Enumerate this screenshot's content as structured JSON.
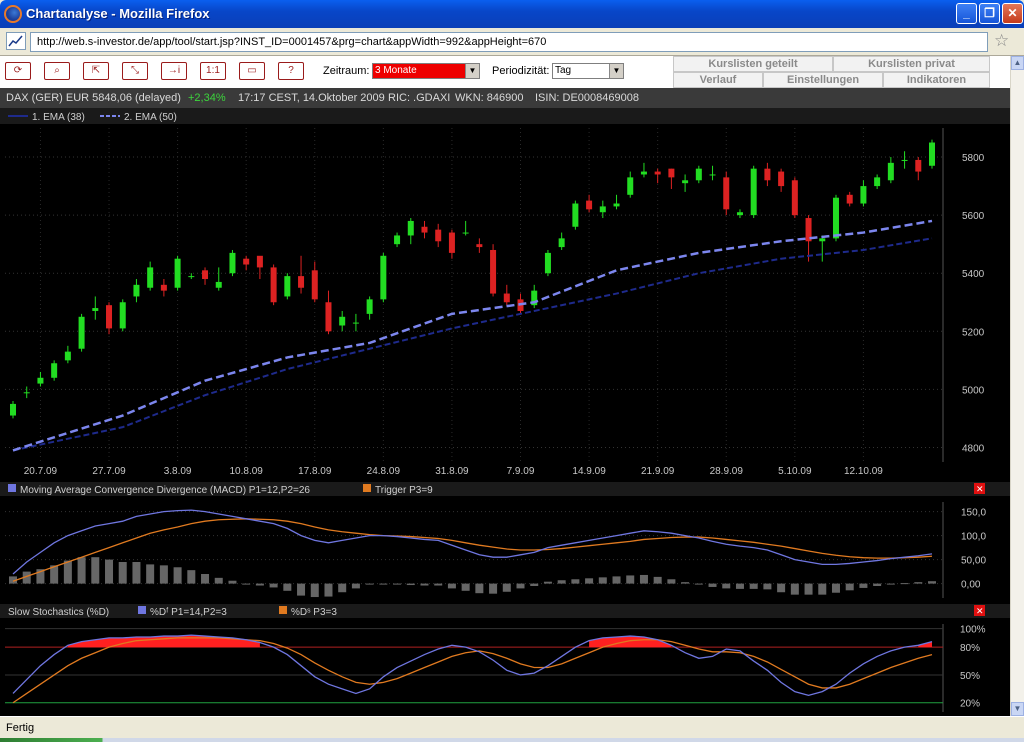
{
  "window": {
    "title": "Chartanalyse - Mozilla Firefox"
  },
  "browser": {
    "url": "http://web.s-investor.de/app/tool/start.jsp?INST_ID=0001457&prg=chart&appWidth=992&appHeight=670",
    "status": "Fertig"
  },
  "toolbar": {
    "buttons": [
      "⟳",
      "⌕",
      "⇱",
      "⤡",
      "→i",
      "1:1",
      "▭",
      "?"
    ],
    "zeitraum_label": "Zeitraum:",
    "zeitraum_value": "3 Monate",
    "period_label": "Periodizität:",
    "period_value": "Tag",
    "tabs": [
      "Kurslisten geteilt",
      "Kurslisten privat",
      "Verlauf",
      "Einstellungen",
      "Indikatoren"
    ]
  },
  "info": {
    "instrument": "DAX (GER) EUR 5848,06 (delayed)",
    "change": "+2,34%",
    "time": "17:17 CEST, 14.Oktober 2009",
    "ric": "RIC: .GDAXI",
    "wkn": "WKN: 846900",
    "isin": "ISIN: DE0008469008"
  },
  "colors": {
    "up": "#22DD22",
    "down": "#DD2222",
    "ema1": "#1E2A8C",
    "ema2": "#7C86EE",
    "macd": "#6F76E0",
    "trigger": "#E07A20",
    "stoch_fill": "#FF2020"
  },
  "chart_data": [
    {
      "type": "candlestick",
      "title": "",
      "legend": [
        "1. EMA (38)",
        "2. EMA (50)"
      ],
      "ylim": [
        4750,
        5900
      ],
      "yticks": [
        4800,
        5000,
        5200,
        5400,
        5600,
        5800
      ],
      "xticks": [
        {
          "label": "20.7.09",
          "index": 2
        },
        {
          "label": "27.7.09",
          "index": 7
        },
        {
          "label": "3.8.09",
          "index": 12
        },
        {
          "label": "10.8.09",
          "index": 17
        },
        {
          "label": "17.8.09",
          "index": 22
        },
        {
          "label": "24.8.09",
          "index": 27
        },
        {
          "label": "31.8.09",
          "index": 32
        },
        {
          "label": "7.9.09",
          "index": 37
        },
        {
          "label": "14.9.09",
          "index": 42
        },
        {
          "label": "21.9.09",
          "index": 47
        },
        {
          "label": "28.9.09",
          "index": 52
        },
        {
          "label": "5.10.09",
          "index": 57
        },
        {
          "label": "12.10.09",
          "index": 62
        }
      ],
      "candles": [
        [
          4910,
          4950,
          4900,
          4960
        ],
        [
          4990,
          4990,
          4970,
          5010
        ],
        [
          5020,
          5040,
          5010,
          5060
        ],
        [
          5040,
          5090,
          5030,
          5100
        ],
        [
          5100,
          5130,
          5090,
          5150
        ],
        [
          5140,
          5250,
          5130,
          5260
        ],
        [
          5270,
          5280,
          5240,
          5320
        ],
        [
          5290,
          5210,
          5190,
          5300
        ],
        [
          5210,
          5300,
          5200,
          5310
        ],
        [
          5320,
          5360,
          5300,
          5380
        ],
        [
          5350,
          5420,
          5340,
          5440
        ],
        [
          5360,
          5340,
          5320,
          5380
        ],
        [
          5350,
          5450,
          5340,
          5460
        ],
        [
          5390,
          5390,
          5380,
          5400
        ],
        [
          5410,
          5380,
          5360,
          5420
        ],
        [
          5350,
          5370,
          5340,
          5420
        ],
        [
          5400,
          5470,
          5390,
          5480
        ],
        [
          5450,
          5430,
          5410,
          5460
        ],
        [
          5460,
          5420,
          5380,
          5450
        ],
        [
          5420,
          5300,
          5290,
          5430
        ],
        [
          5320,
          5390,
          5310,
          5400
        ],
        [
          5390,
          5350,
          5330,
          5460
        ],
        [
          5410,
          5310,
          5300,
          5440
        ],
        [
          5300,
          5200,
          5190,
          5340
        ],
        [
          5220,
          5250,
          5200,
          5270
        ],
        [
          5230,
          5230,
          5200,
          5260
        ],
        [
          5260,
          5310,
          5240,
          5320
        ],
        [
          5310,
          5460,
          5300,
          5470
        ],
        [
          5500,
          5530,
          5490,
          5540
        ],
        [
          5530,
          5580,
          5500,
          5590
        ],
        [
          5560,
          5540,
          5520,
          5580
        ],
        [
          5550,
          5510,
          5490,
          5570
        ],
        [
          5540,
          5470,
          5450,
          5550
        ],
        [
          5540,
          5540,
          5530,
          5580
        ],
        [
          5500,
          5490,
          5470,
          5520
        ],
        [
          5480,
          5330,
          5320,
          5500
        ],
        [
          5330,
          5300,
          5290,
          5360
        ],
        [
          5310,
          5270,
          5260,
          5330
        ],
        [
          5290,
          5340,
          5280,
          5360
        ],
        [
          5400,
          5470,
          5390,
          5480
        ],
        [
          5490,
          5520,
          5480,
          5540
        ],
        [
          5560,
          5640,
          5550,
          5650
        ],
        [
          5650,
          5620,
          5610,
          5670
        ],
        [
          5610,
          5630,
          5590,
          5650
        ],
        [
          5630,
          5640,
          5620,
          5670
        ],
        [
          5670,
          5730,
          5660,
          5750
        ],
        [
          5740,
          5750,
          5730,
          5780
        ],
        [
          5750,
          5740,
          5710,
          5760
        ],
        [
          5760,
          5730,
          5690,
          5760
        ],
        [
          5710,
          5720,
          5680,
          5740
        ],
        [
          5720,
          5760,
          5710,
          5770
        ],
        [
          5740,
          5740,
          5720,
          5770
        ],
        [
          5730,
          5620,
          5600,
          5750
        ],
        [
          5600,
          5610,
          5590,
          5620
        ],
        [
          5600,
          5760,
          5590,
          5770
        ],
        [
          5760,
          5720,
          5700,
          5780
        ],
        [
          5750,
          5700,
          5680,
          5760
        ],
        [
          5720,
          5600,
          5590,
          5730
        ],
        [
          5590,
          5510,
          5440,
          5600
        ],
        [
          5510,
          5520,
          5440,
          5530
        ],
        [
          5520,
          5660,
          5510,
          5670
        ],
        [
          5670,
          5640,
          5630,
          5680
        ],
        [
          5640,
          5700,
          5630,
          5720
        ],
        [
          5700,
          5730,
          5690,
          5740
        ],
        [
          5720,
          5780,
          5710,
          5800
        ],
        [
          5790,
          5790,
          5760,
          5820
        ],
        [
          5790,
          5750,
          5720,
          5800
        ],
        [
          5770,
          5850,
          5760,
          5860
        ]
      ],
      "ema1": [
        [
          0,
          4790
        ],
        [
          8,
          4870
        ],
        [
          14,
          4980
        ],
        [
          20,
          5070
        ],
        [
          26,
          5140
        ],
        [
          32,
          5210
        ],
        [
          38,
          5270
        ],
        [
          44,
          5330
        ],
        [
          50,
          5400
        ],
        [
          56,
          5450
        ],
        [
          62,
          5480
        ],
        [
          67,
          5520
        ]
      ],
      "ema2": [
        [
          0,
          4790
        ],
        [
          8,
          4910
        ],
        [
          14,
          5030
        ],
        [
          20,
          5110
        ],
        [
          26,
          5160
        ],
        [
          32,
          5260
        ],
        [
          38,
          5300
        ],
        [
          44,
          5410
        ],
        [
          50,
          5470
        ],
        [
          56,
          5510
        ],
        [
          62,
          5540
        ],
        [
          67,
          5580
        ]
      ]
    },
    {
      "type": "line",
      "title": "Moving Average Convergence Divergence (MACD) P1=12,P2=26",
      "legend": [
        "Moving Average Convergence Divergence (MACD) P1=12,P2=26",
        "Trigger P3=9"
      ],
      "ylim": [
        -30,
        170
      ],
      "yticks": [
        "150,0",
        "100,0",
        "50,00",
        "0,00"
      ],
      "macd": [
        20,
        45,
        65,
        85,
        100,
        110,
        120,
        125,
        130,
        140,
        145,
        150,
        152,
        153,
        150,
        145,
        140,
        135,
        130,
        125,
        115,
        100,
        90,
        85,
        90,
        95,
        100,
        100,
        98,
        95,
        92,
        90,
        80,
        70,
        60,
        55,
        55,
        60,
        65,
        75,
        80,
        85,
        90,
        95,
        100,
        105,
        110,
        108,
        105,
        100,
        95,
        88,
        82,
        78,
        75,
        70,
        60,
        50,
        45,
        40,
        40,
        42,
        45,
        48,
        52,
        55,
        58,
        62
      ],
      "trigger": [
        5,
        15,
        25,
        35,
        45,
        55,
        65,
        75,
        85,
        95,
        105,
        112,
        118,
        125,
        130,
        133,
        134,
        135,
        134,
        133,
        130,
        125,
        118,
        112,
        108,
        105,
        102,
        100,
        99,
        98,
        96,
        94,
        90,
        85,
        80,
        76,
        72,
        70,
        70,
        71,
        73,
        76,
        79,
        82,
        85,
        88,
        92,
        94,
        96,
        97,
        97,
        95,
        92,
        89,
        86,
        82,
        78,
        73,
        68,
        63,
        59,
        56,
        54,
        53,
        53,
        54,
        55,
        57
      ],
      "histogram": [
        15,
        25,
        30,
        38,
        48,
        55,
        55,
        50,
        45,
        45,
        40,
        38,
        34,
        28,
        20,
        12,
        6,
        0,
        -4,
        -8,
        -15,
        -25,
        -28,
        -27,
        -18,
        -10,
        -2,
        0,
        -1,
        -3,
        -4,
        -4,
        -10,
        -15,
        -20,
        -21,
        -17,
        -10,
        -5,
        4,
        7,
        9,
        11,
        13,
        15,
        17,
        18,
        14,
        9,
        3,
        -2,
        -7,
        -10,
        -11,
        -11,
        -12,
        -18,
        -23,
        -23,
        -23,
        -19,
        -14,
        -9,
        -5,
        -1,
        1,
        3,
        5
      ]
    },
    {
      "type": "line",
      "title": "Slow Stochastics (%D)",
      "legend": [
        "Slow Stochastics (%D)",
        "%Dᶠ P1=14,P2=3",
        "%Dˢ P3=3"
      ],
      "ylim": [
        10,
        105
      ],
      "yticks": [
        {
          "label": "100%",
          "value": 100
        },
        {
          "label": "80%",
          "value": 80
        },
        {
          "label": "50%",
          "value": 50
        },
        {
          "label": "20%",
          "value": 20
        }
      ],
      "fast": [
        30,
        45,
        60,
        72,
        82,
        86,
        88,
        90,
        90,
        91,
        91,
        92,
        92,
        93,
        92,
        91,
        90,
        88,
        85,
        80,
        72,
        60,
        48,
        40,
        35,
        30,
        35,
        48,
        58,
        65,
        72,
        78,
        82,
        80,
        75,
        66,
        55,
        50,
        52,
        60,
        70,
        80,
        87,
        90,
        91,
        92,
        91,
        88,
        82,
        74,
        68,
        70,
        78,
        76,
        65,
        55,
        42,
        32,
        28,
        32,
        40,
        52,
        62,
        70,
        76,
        80,
        82,
        86
      ],
      "slow": [
        20,
        30,
        40,
        50,
        60,
        68,
        74,
        80,
        84,
        87,
        88,
        89,
        90,
        90,
        90,
        90,
        89,
        88,
        87,
        84,
        79,
        72,
        63,
        55,
        48,
        42,
        40,
        42,
        46,
        52,
        58,
        64,
        70,
        74,
        76,
        73,
        68,
        62,
        58,
        58,
        62,
        68,
        74,
        80,
        84,
        87,
        88,
        88,
        86,
        82,
        78,
        75,
        75,
        74,
        70,
        64,
        56,
        48,
        40,
        36,
        36,
        40,
        46,
        52,
        58,
        63,
        68,
        72
      ]
    }
  ]
}
